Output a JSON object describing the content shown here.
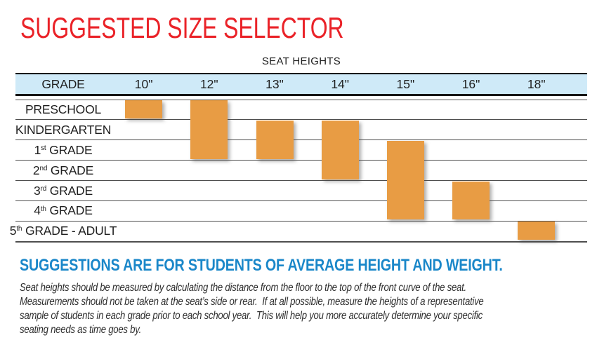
{
  "page_title": "SUGGESTED SIZE SELECTOR",
  "colors": {
    "title_red": "#ea2228",
    "heading_blue": "#1a87c9",
    "header_bg_blue": "#cfeaf8",
    "bar_orange": "#e89c44"
  },
  "table": {
    "caption": "SEAT HEIGHTS",
    "grade_header": "GRADE",
    "columns": [
      "10\"",
      "12\"",
      "13\"",
      "14\"",
      "15\"",
      "16\"",
      "18\""
    ],
    "rows": [
      {
        "text": "PRESCHOOL",
        "sup": "",
        "rest": ""
      },
      {
        "text": "KINDERGARTEN",
        "sup": "",
        "rest": ""
      },
      {
        "text": "1",
        "sup": "st",
        "rest": " GRADE"
      },
      {
        "text": "2",
        "sup": "nd",
        "rest": " GRADE"
      },
      {
        "text": "3",
        "sup": "rd",
        "rest": " GRADE"
      },
      {
        "text": "4",
        "sup": "th",
        "rest": " GRADE"
      },
      {
        "text": "5",
        "sup": "th",
        "rest": " GRADE - ADULT"
      }
    ]
  },
  "chart_data": {
    "type": "table",
    "title": "SEAT HEIGHTS",
    "columns": [
      "10\"",
      "12\"",
      "13\"",
      "14\"",
      "15\"",
      "16\"",
      "18\""
    ],
    "row_categories": [
      "PRESCHOOL",
      "KINDERGARTEN",
      "1st GRADE",
      "2nd GRADE",
      "3rd GRADE",
      "4th GRADE",
      "5th GRADE - ADULT"
    ],
    "bar_color": "#e89c44",
    "bars": [
      {
        "seat_height": "10\"",
        "col": 0,
        "row_start": 0,
        "row_end": 0,
        "grades": "PRESCHOOL"
      },
      {
        "seat_height": "12\"",
        "col": 1,
        "row_start": 0,
        "row_end": 2,
        "grades": "PRESCHOOL to 1st GRADE"
      },
      {
        "seat_height": "13\"",
        "col": 2,
        "row_start": 1,
        "row_end": 2,
        "grades": "KINDERGARTEN to 1st GRADE"
      },
      {
        "seat_height": "14\"",
        "col": 3,
        "row_start": 1,
        "row_end": 3,
        "grades": "KINDERGARTEN to 2nd GRADE"
      },
      {
        "seat_height": "15\"",
        "col": 4,
        "row_start": 2,
        "row_end": 5,
        "grades": "1st GRADE to 4th GRADE"
      },
      {
        "seat_height": "16\"",
        "col": 5,
        "row_start": 4,
        "row_end": 5,
        "grades": "3rd GRADE to 4th GRADE"
      },
      {
        "seat_height": "18\"",
        "col": 6,
        "row_start": 6,
        "row_end": 6,
        "grades": "5th GRADE - ADULT"
      }
    ]
  },
  "footer": {
    "heading": "SUGGESTIONS ARE FOR STUDENTS OF AVERAGE HEIGHT AND WEIGHT.",
    "lines": [
      "Seat heights should be measured by calculating the distance from the floor to the top of the front curve of the seat.",
      "Measurements should not be taken at the seat’s side or rear.  If at all possible, measure the heights of a representative",
      "sample of students in each grade prior to each school year.  This will help you more accurately determine your specific",
      "seating needs as time goes by."
    ]
  }
}
